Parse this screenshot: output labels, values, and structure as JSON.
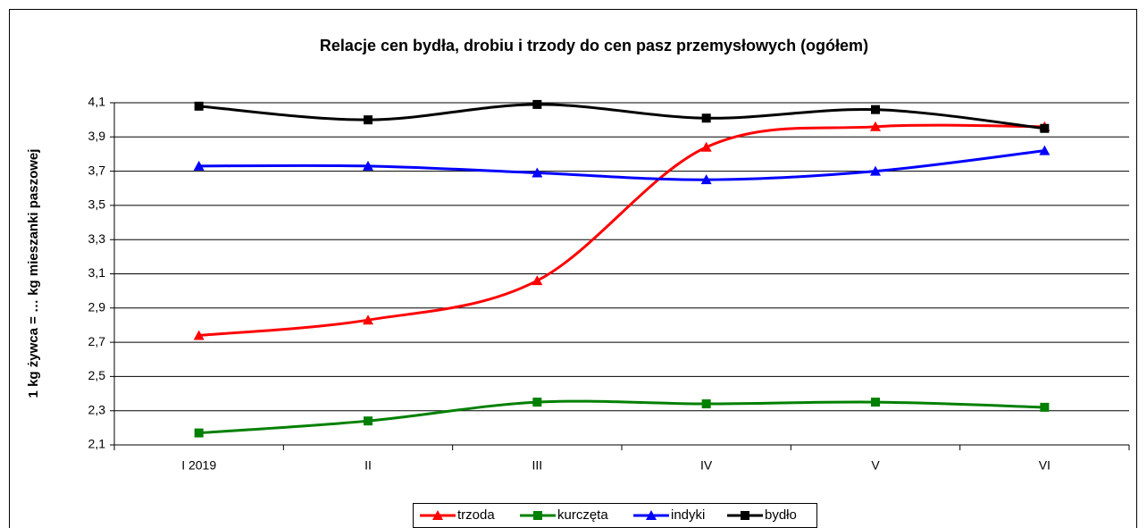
{
  "chart_data": {
    "type": "line",
    "title": "Relacje cen bydła, drobiu i trzody do cen pasz przemysłowych (ogółem)",
    "y_label": "1 kg żywca = … kg mieszanki paszowej",
    "categories": [
      "I 2019",
      "II",
      "III",
      "IV",
      "V",
      "VI"
    ],
    "ylim": [
      2.1,
      4.1
    ],
    "yticks": [
      {
        "value": 2.1,
        "label": "2,1"
      },
      {
        "value": 2.3,
        "label": "2,3"
      },
      {
        "value": 2.5,
        "label": "2,5"
      },
      {
        "value": 2.7,
        "label": "2,7"
      },
      {
        "value": 2.9,
        "label": "2,9"
      },
      {
        "value": 3.1,
        "label": "3,1"
      },
      {
        "value": 3.3,
        "label": "3,3"
      },
      {
        "value": 3.5,
        "label": "3,5"
      },
      {
        "value": 3.7,
        "label": "3,7"
      },
      {
        "value": 3.9,
        "label": "3,9"
      },
      {
        "value": 4.1,
        "label": "4,1"
      }
    ],
    "grid": true,
    "smooth": true,
    "legend": "bottom",
    "series": [
      {
        "name": "trzoda",
        "color": "#ff0000",
        "marker": "triangle",
        "values": [
          2.74,
          2.83,
          3.06,
          3.84,
          3.96,
          3.96
        ]
      },
      {
        "name": "kurczęta",
        "color": "#008000",
        "marker": "square",
        "values": [
          2.17,
          2.24,
          2.35,
          2.34,
          2.35,
          2.32
        ]
      },
      {
        "name": "indyki",
        "color": "#0000ff",
        "marker": "triangle",
        "values": [
          3.73,
          3.73,
          3.69,
          3.65,
          3.7,
          3.82
        ]
      },
      {
        "name": "bydło",
        "color": "#000000",
        "marker": "square",
        "values": [
          4.08,
          4.0,
          4.09,
          4.01,
          4.06,
          3.95
        ]
      }
    ]
  }
}
